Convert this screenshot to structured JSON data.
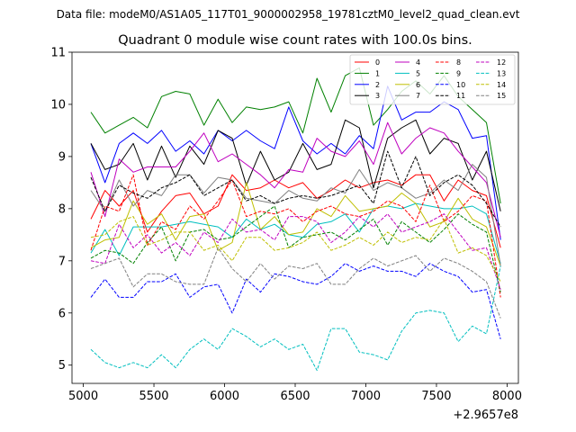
{
  "figure": {
    "suptitle": "Data file: modeM0/AS1A05_117T01_9000002958_19781cztM0_level2_quad_clean.evt"
  },
  "chart_data": {
    "type": "line",
    "title": "Quadrant 0 module wise count rates with 100.0s bins.",
    "xlabel": "",
    "ylabel": "",
    "x_offset_label": "+2.9657e8",
    "xlim": [
      4920,
      8080
    ],
    "ylim": [
      4.65,
      11.0
    ],
    "xticks": [
      5000,
      5500,
      6000,
      6500,
      7000,
      7500,
      8000
    ],
    "xtick_labels": [
      "5000",
      "5500",
      "6000",
      "6500",
      "7000",
      "7500",
      "8000"
    ],
    "yticks": [
      5,
      6,
      7,
      8,
      9,
      10,
      11
    ],
    "ytick_labels": [
      "5",
      "6",
      "7",
      "8",
      "9",
      "10",
      "11"
    ],
    "legend_location": "upper-right",
    "x": [
      5054,
      5154,
      5254,
      5354,
      5454,
      5554,
      5654,
      5754,
      5854,
      5954,
      6054,
      6154,
      6254,
      6354,
      6454,
      6554,
      6654,
      6754,
      6854,
      6954,
      7054,
      7154,
      7254,
      7354,
      7454,
      7554,
      7654,
      7754,
      7854,
      7954
    ],
    "series": [
      {
        "name": "0",
        "color": "#ff0000",
        "dash": "solid",
        "values": [
          7.8,
          8.35,
          8.05,
          8.35,
          7.55,
          7.95,
          8.25,
          8.3,
          7.9,
          8.05,
          8.65,
          8.35,
          8.4,
          8.55,
          8.4,
          8.5,
          8.2,
          8.35,
          8.55,
          8.4,
          8.5,
          8.55,
          8.45,
          8.65,
          8.65,
          8.15,
          8.55,
          8.35,
          8.25,
          7.25
        ]
      },
      {
        "name": "1",
        "color": "#008000",
        "dash": "solid",
        "values": [
          9.85,
          9.45,
          9.6,
          9.75,
          9.55,
          10.15,
          10.25,
          10.2,
          9.6,
          10.1,
          9.65,
          9.95,
          9.9,
          9.95,
          10.05,
          9.45,
          10.5,
          9.85,
          10.55,
          10.7,
          9.6,
          9.9,
          10.25,
          10.45,
          10.2,
          10.55,
          10.15,
          9.9,
          9.65,
          8.1
        ]
      },
      {
        "name": "2",
        "color": "#0000ff",
        "dash": "solid",
        "values": [
          9.25,
          8.5,
          9.25,
          9.45,
          9.25,
          9.5,
          9.1,
          9.3,
          9.05,
          9.5,
          9.3,
          9.5,
          9.3,
          9.15,
          9.95,
          9.3,
          9.05,
          9.25,
          9.05,
          9.4,
          9.15,
          10.35,
          9.7,
          9.85,
          9.85,
          10.05,
          9.9,
          9.35,
          9.4,
          7.4
        ]
      },
      {
        "name": "3",
        "color": "#000000",
        "dash": "solid",
        "values": [
          9.25,
          8.75,
          8.85,
          9.25,
          8.55,
          9.2,
          8.6,
          9.2,
          8.85,
          9.5,
          9.35,
          8.45,
          9.1,
          8.55,
          8.7,
          9.25,
          8.75,
          8.85,
          9.7,
          9.55,
          8.4,
          9.35,
          9.55,
          9.7,
          9.05,
          9.35,
          9.25,
          8.55,
          9.1,
          7.95
        ]
      },
      {
        "name": "4",
        "color": "#bf00bf",
        "dash": "solid",
        "values": [
          8.7,
          7.85,
          8.95,
          8.7,
          8.8,
          8.8,
          8.8,
          9.1,
          9.45,
          8.9,
          9.05,
          8.85,
          8.65,
          8.4,
          8.75,
          8.7,
          9.35,
          9.1,
          9.0,
          9.3,
          8.85,
          9.65,
          9.05,
          9.35,
          9.55,
          9.45,
          9.1,
          8.8,
          8.5,
          7.45
        ]
      },
      {
        "name": "5",
        "color": "#00bfbf",
        "dash": "solid",
        "values": [
          7.15,
          7.6,
          7.1,
          7.65,
          7.65,
          7.65,
          7.7,
          7.75,
          7.7,
          7.65,
          7.45,
          7.8,
          7.6,
          7.7,
          7.5,
          7.45,
          7.7,
          7.75,
          7.9,
          7.55,
          8.0,
          8.05,
          8.0,
          8.1,
          8.05,
          8.0,
          8.0,
          8.05,
          7.9,
          6.95
        ]
      },
      {
        "name": "6",
        "color": "#bfbf00",
        "dash": "solid",
        "values": [
          7.25,
          7.4,
          7.45,
          8.15,
          7.7,
          7.9,
          7.4,
          7.85,
          7.9,
          7.2,
          7.35,
          8.5,
          7.6,
          7.85,
          7.5,
          7.55,
          8.0,
          7.85,
          8.25,
          7.95,
          8.0,
          8.05,
          8.3,
          8.1,
          7.65,
          7.75,
          8.2,
          7.8,
          7.65,
          6.9
        ]
      },
      {
        "name": "7",
        "color": "#808080",
        "dash": "solid",
        "values": [
          8.35,
          7.95,
          8.55,
          8.05,
          8.35,
          8.25,
          8.65,
          8.65,
          8.3,
          8.6,
          8.55,
          8.2,
          8.15,
          8.1,
          8.35,
          8.2,
          8.15,
          8.4,
          8.3,
          8.75,
          8.35,
          8.5,
          8.4,
          8.2,
          8.3,
          8.55,
          8.35,
          8.85,
          8.6,
          6.9
        ]
      },
      {
        "name": "8",
        "color": "#ff0000",
        "dash": "dashed",
        "values": [
          7.2,
          8.05,
          7.95,
          8.65,
          7.3,
          7.75,
          7.6,
          8.05,
          7.8,
          8.15,
          8.55,
          7.85,
          7.95,
          7.9,
          8.0,
          7.75,
          7.95,
          8.05,
          7.9,
          7.85,
          7.95,
          8.15,
          8.05,
          7.75,
          8.45,
          7.75,
          7.95,
          8.25,
          8.15,
          6.3
        ]
      },
      {
        "name": "9",
        "color": "#008000",
        "dash": "dashed",
        "values": [
          7.05,
          7.2,
          7.15,
          6.95,
          7.35,
          7.65,
          7.0,
          7.55,
          7.6,
          7.4,
          7.45,
          7.65,
          7.85,
          8.05,
          7.25,
          7.45,
          7.5,
          7.55,
          7.4,
          7.6,
          7.8,
          7.3,
          7.75,
          7.55,
          7.35,
          7.6,
          7.9,
          7.7,
          7.55,
          6.4
        ]
      },
      {
        "name": "10",
        "color": "#0000ff",
        "dash": "dashed",
        "values": [
          6.3,
          6.65,
          6.3,
          6.3,
          6.6,
          6.6,
          6.75,
          6.3,
          6.5,
          6.55,
          6.0,
          6.65,
          6.4,
          6.75,
          6.7,
          6.6,
          6.55,
          6.7,
          6.95,
          6.8,
          6.9,
          6.8,
          6.8,
          6.7,
          6.95,
          6.8,
          6.7,
          6.4,
          6.45,
          5.5
        ]
      },
      {
        "name": "11",
        "color": "#000000",
        "dash": "dashed",
        "values": [
          8.6,
          7.95,
          8.45,
          8.3,
          8.2,
          8.4,
          8.5,
          8.65,
          8.25,
          8.4,
          8.55,
          8.15,
          8.25,
          8.1,
          8.2,
          8.25,
          8.2,
          8.25,
          8.35,
          8.45,
          8.1,
          9.1,
          8.4,
          9.0,
          8.25,
          8.5,
          8.65,
          8.45,
          8.1,
          7.65
        ]
      },
      {
        "name": "12",
        "color": "#bf00bf",
        "dash": "dashed",
        "values": [
          7.0,
          6.95,
          7.7,
          7.25,
          7.5,
          7.15,
          7.35,
          7.1,
          7.55,
          7.35,
          7.8,
          7.55,
          7.6,
          7.4,
          7.85,
          7.85,
          7.75,
          7.35,
          7.55,
          7.85,
          7.65,
          7.9,
          7.55,
          7.65,
          7.75,
          7.9,
          7.55,
          7.2,
          7.25,
          6.45
        ]
      },
      {
        "name": "13",
        "color": "#00bfbf",
        "dash": "dashed",
        "values": [
          5.3,
          5.05,
          4.95,
          5.05,
          4.95,
          5.2,
          4.95,
          5.3,
          5.5,
          5.3,
          5.7,
          5.55,
          5.35,
          5.5,
          5.3,
          5.4,
          4.9,
          5.7,
          5.7,
          5.25,
          5.2,
          5.1,
          5.65,
          6.0,
          6.05,
          6.0,
          5.45,
          5.75,
          5.6,
          6.9
        ]
      },
      {
        "name": "14",
        "color": "#bfbf00",
        "dash": "dashed",
        "values": [
          7.45,
          7.5,
          7.75,
          7.85,
          7.3,
          7.4,
          7.55,
          7.55,
          7.2,
          7.3,
          7.0,
          7.45,
          7.45,
          7.2,
          7.25,
          7.35,
          7.55,
          7.2,
          7.3,
          7.45,
          7.3,
          7.55,
          7.35,
          7.45,
          7.4,
          7.8,
          7.15,
          7.25,
          7.1,
          6.6
        ]
      },
      {
        "name": "15",
        "color": "#808080",
        "dash": "dashed",
        "values": [
          6.85,
          6.95,
          7.05,
          6.5,
          6.75,
          6.75,
          6.6,
          6.55,
          6.55,
          7.25,
          6.85,
          6.6,
          6.95,
          6.65,
          6.9,
          6.85,
          6.95,
          6.55,
          6.55,
          6.85,
          7.05,
          6.9,
          7.0,
          7.1,
          6.8,
          7.05,
          6.95,
          6.8,
          6.6,
          5.9
        ]
      }
    ]
  }
}
